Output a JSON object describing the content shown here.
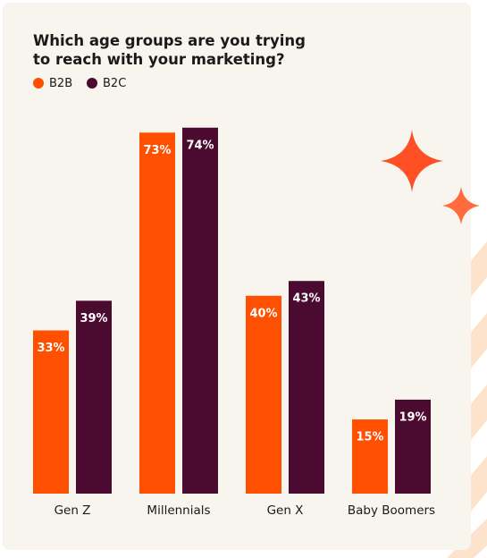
{
  "chart_data": {
    "type": "bar",
    "title": "Which age groups are you trying to reach with your marketing?",
    "categories": [
      "Gen Z",
      "Millennials",
      "Gen X",
      "Baby Boomers"
    ],
    "series": [
      {
        "name": "B2B",
        "color": "#ff4f00",
        "values": [
          33,
          73,
          40,
          15
        ],
        "value_labels": [
          "33%",
          "73%",
          "40%",
          "15%"
        ]
      },
      {
        "name": "B2C",
        "color": "#4b0a2f",
        "values": [
          39,
          74,
          43,
          19
        ],
        "value_labels": [
          "39%",
          "74%",
          "43%",
          "19%"
        ]
      }
    ]
  }
}
